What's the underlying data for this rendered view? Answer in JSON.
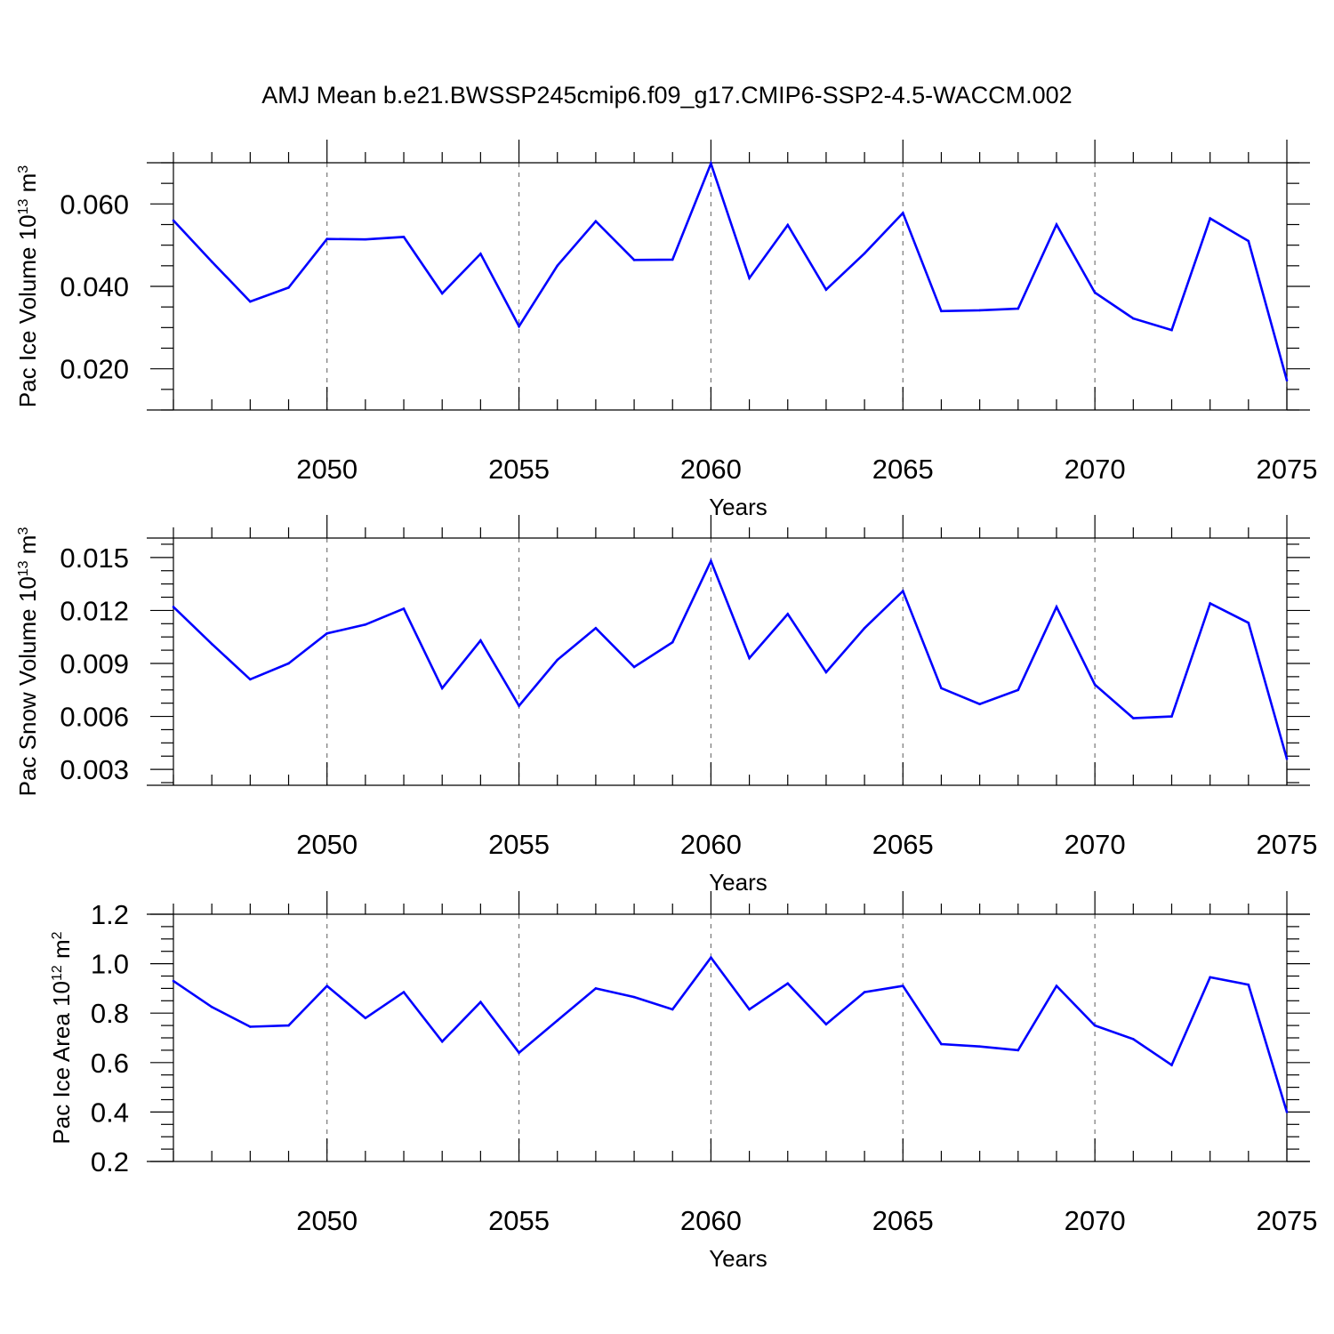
{
  "title": "AMJ Mean b.e21.BWSSP245cmip6.f09_g17.CMIP6-SSP2-4.5-WACCM.002",
  "line_color": "#0000ff",
  "chart_data": [
    {
      "type": "line",
      "ylabel": "Pac Ice Volume 10",
      "ylabel_exp": "13",
      "ylabel_unit": " m",
      "ylabel_unit_exp": "3",
      "xlabel": "Years",
      "xlim": [
        2046,
        2075
      ],
      "ylim": [
        0.01,
        0.07
      ],
      "yticks": [
        "0.020",
        "0.040",
        "0.060"
      ],
      "ytick_values": [
        0.02,
        0.04,
        0.06
      ],
      "xticks": [
        "2050",
        "2055",
        "2060",
        "2065",
        "2070",
        "2075"
      ],
      "xtick_values": [
        2050,
        2055,
        2060,
        2065,
        2070,
        2075
      ],
      "grid_x": [
        2050,
        2055,
        2060,
        2065,
        2070
      ],
      "series": [
        {
          "name": "Pac Ice Volume",
          "x": [
            2046,
            2047,
            2048,
            2049,
            2050,
            2051,
            2052,
            2053,
            2054,
            2055,
            2056,
            2057,
            2058,
            2059,
            2060,
            2061,
            2062,
            2063,
            2064,
            2065,
            2066,
            2067,
            2068,
            2069,
            2070,
            2071,
            2072,
            2073,
            2074,
            2075
          ],
          "values": [
            0.056,
            0.046,
            0.0363,
            0.0397,
            0.0515,
            0.0514,
            0.052,
            0.0383,
            0.0479,
            0.0303,
            0.045,
            0.0558,
            0.0464,
            0.0465,
            0.0698,
            0.042,
            0.0549,
            0.0392,
            0.048,
            0.0578,
            0.034,
            0.0342,
            0.0346,
            0.055,
            0.0385,
            0.0322,
            0.0294,
            0.0565,
            0.051,
            0.0172
          ]
        }
      ]
    },
    {
      "type": "line",
      "ylabel": "Pac Snow Volume 10",
      "ylabel_exp": "13",
      "ylabel_unit": " m",
      "ylabel_unit_exp": "3",
      "xlabel": "Years",
      "xlim": [
        2046,
        2075
      ],
      "ylim": [
        0.0021,
        0.0161
      ],
      "yticks": [
        "0.003",
        "0.006",
        "0.009",
        "0.012",
        "0.015"
      ],
      "ytick_values": [
        0.003,
        0.006,
        0.009,
        0.012,
        0.015
      ],
      "xticks": [
        "2050",
        "2055",
        "2060",
        "2065",
        "2070",
        "2075"
      ],
      "xtick_values": [
        2050,
        2055,
        2060,
        2065,
        2070,
        2075
      ],
      "grid_x": [
        2050,
        2055,
        2060,
        2065,
        2070
      ],
      "series": [
        {
          "name": "Pac Snow Volume",
          "x": [
            2046,
            2047,
            2048,
            2049,
            2050,
            2051,
            2052,
            2053,
            2054,
            2055,
            2056,
            2057,
            2058,
            2059,
            2060,
            2061,
            2062,
            2063,
            2064,
            2065,
            2066,
            2067,
            2068,
            2069,
            2070,
            2071,
            2072,
            2073,
            2074,
            2075
          ],
          "values": [
            0.0122,
            0.0101,
            0.0081,
            0.009,
            0.0107,
            0.0112,
            0.0121,
            0.0076,
            0.0103,
            0.0066,
            0.0092,
            0.011,
            0.0088,
            0.0102,
            0.0148,
            0.0093,
            0.0118,
            0.0085,
            0.011,
            0.0131,
            0.0076,
            0.0067,
            0.0075,
            0.0122,
            0.0078,
            0.0059,
            0.006,
            0.0124,
            0.0113,
            0.0036
          ]
        }
      ]
    },
    {
      "type": "line",
      "ylabel": "Pac Ice Area 10",
      "ylabel_exp": "12",
      "ylabel_unit": " m",
      "ylabel_unit_exp": "2",
      "xlabel": "Years",
      "xlim": [
        2046,
        2075
      ],
      "ylim": [
        0.2,
        1.2
      ],
      "yticks": [
        "0.2",
        "0.4",
        "0.6",
        "0.8",
        "1.0",
        "1.2"
      ],
      "ytick_values": [
        0.2,
        0.4,
        0.6,
        0.8,
        1.0,
        1.2
      ],
      "xticks": [
        "2050",
        "2055",
        "2060",
        "2065",
        "2070",
        "2075"
      ],
      "xtick_values": [
        2050,
        2055,
        2060,
        2065,
        2070,
        2075
      ],
      "grid_x": [
        2050,
        2055,
        2060,
        2065,
        2070
      ],
      "series": [
        {
          "name": "Pac Ice Area",
          "x": [
            2046,
            2047,
            2048,
            2049,
            2050,
            2051,
            2052,
            2053,
            2054,
            2055,
            2056,
            2057,
            2058,
            2059,
            2060,
            2061,
            2062,
            2063,
            2064,
            2065,
            2066,
            2067,
            2068,
            2069,
            2070,
            2071,
            2072,
            2073,
            2074,
            2075
          ],
          "values": [
            0.93,
            0.825,
            0.745,
            0.75,
            0.91,
            0.78,
            0.885,
            0.685,
            0.845,
            0.64,
            0.77,
            0.9,
            0.865,
            0.815,
            1.025,
            0.815,
            0.92,
            0.755,
            0.885,
            0.91,
            0.675,
            0.665,
            0.65,
            0.91,
            0.75,
            0.695,
            0.59,
            0.945,
            0.915,
            0.4
          ]
        }
      ]
    }
  ]
}
